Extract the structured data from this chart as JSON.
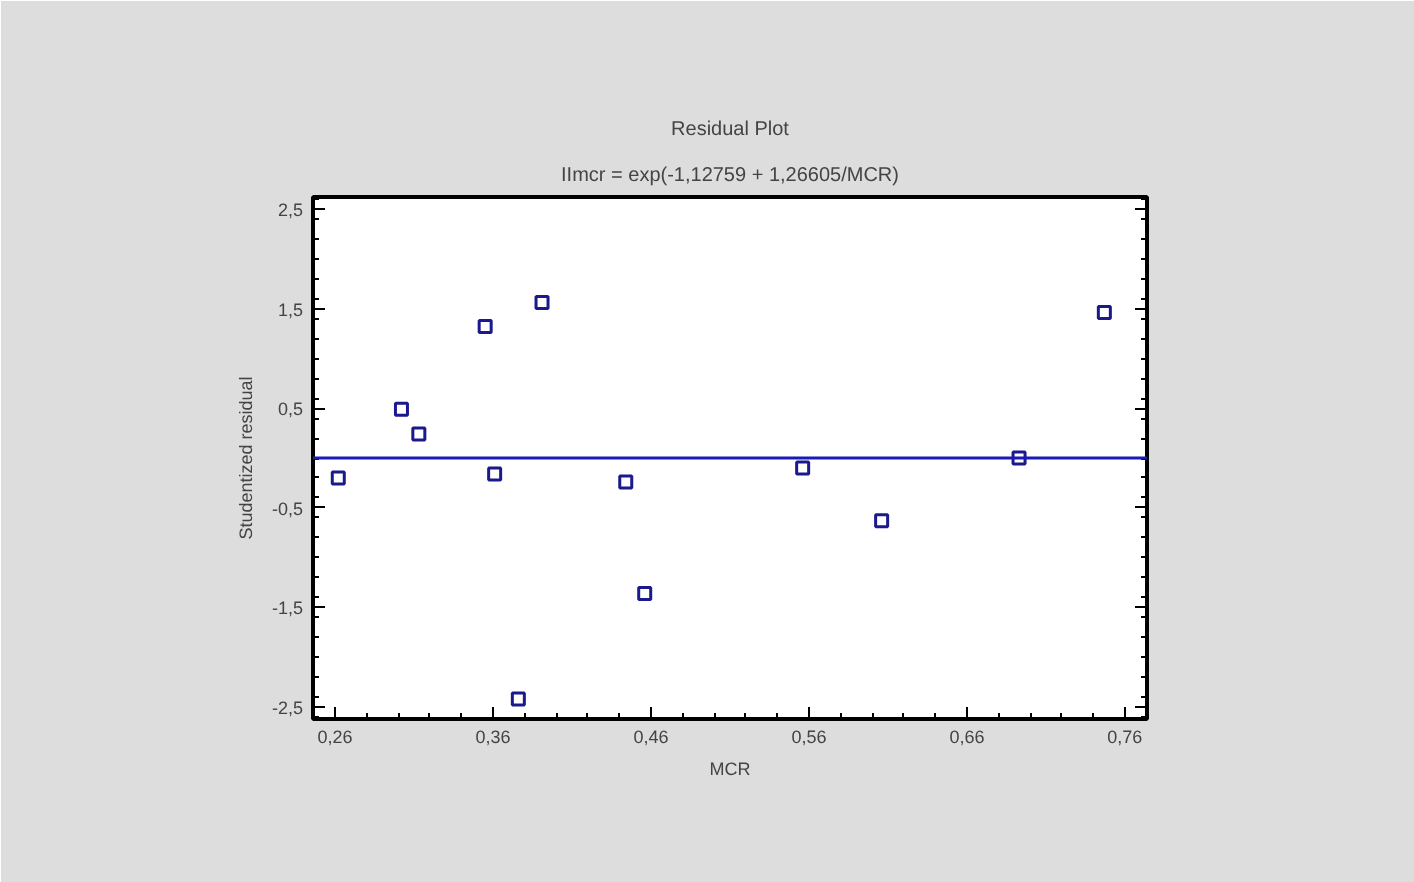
{
  "chart_data": {
    "type": "scatter",
    "title": "Residual Plot",
    "subtitle": "IImcr = exp(-1,12759 + 1,26605/MCR)",
    "xlabel": "MCR",
    "ylabel": "Studentized residual",
    "x": [
      0.262,
      0.302,
      0.313,
      0.355,
      0.361,
      0.391,
      0.376,
      0.444,
      0.456,
      0.556,
      0.606,
      0.693,
      0.747
    ],
    "series": [
      {
        "color": "#1a1a8c",
        "values": [
          -0.2,
          0.49,
          0.24,
          1.32,
          -0.16,
          1.56,
          -2.42,
          -0.24,
          -1.36,
          -0.1,
          -0.63,
          0.0,
          1.46
        ]
      }
    ],
    "marker": "square",
    "xlim": [
      0.246,
      0.774
    ],
    "ylim": [
      -2.62,
      2.62
    ],
    "xticks": [
      {
        "value": 0.26,
        "label": "0,26"
      },
      {
        "value": 0.36,
        "label": "0,36"
      },
      {
        "value": 0.46,
        "label": "0,46"
      },
      {
        "value": 0.56,
        "label": "0,56"
      },
      {
        "value": 0.66,
        "label": "0,66"
      },
      {
        "value": 0.76,
        "label": "0,76"
      }
    ],
    "yticks": [
      {
        "value": -2.5,
        "label": "-2,5"
      },
      {
        "value": -1.5,
        "label": "-1,5"
      },
      {
        "value": -0.5,
        "label": "-0,5"
      },
      {
        "value": 0.5,
        "label": "0,5"
      },
      {
        "value": 1.5,
        "label": "1,5"
      },
      {
        "value": 2.5,
        "label": "2,5"
      }
    ],
    "ref_lines": [
      {
        "axis": "y",
        "value": 0,
        "color": "#1a1ab4"
      }
    ]
  }
}
